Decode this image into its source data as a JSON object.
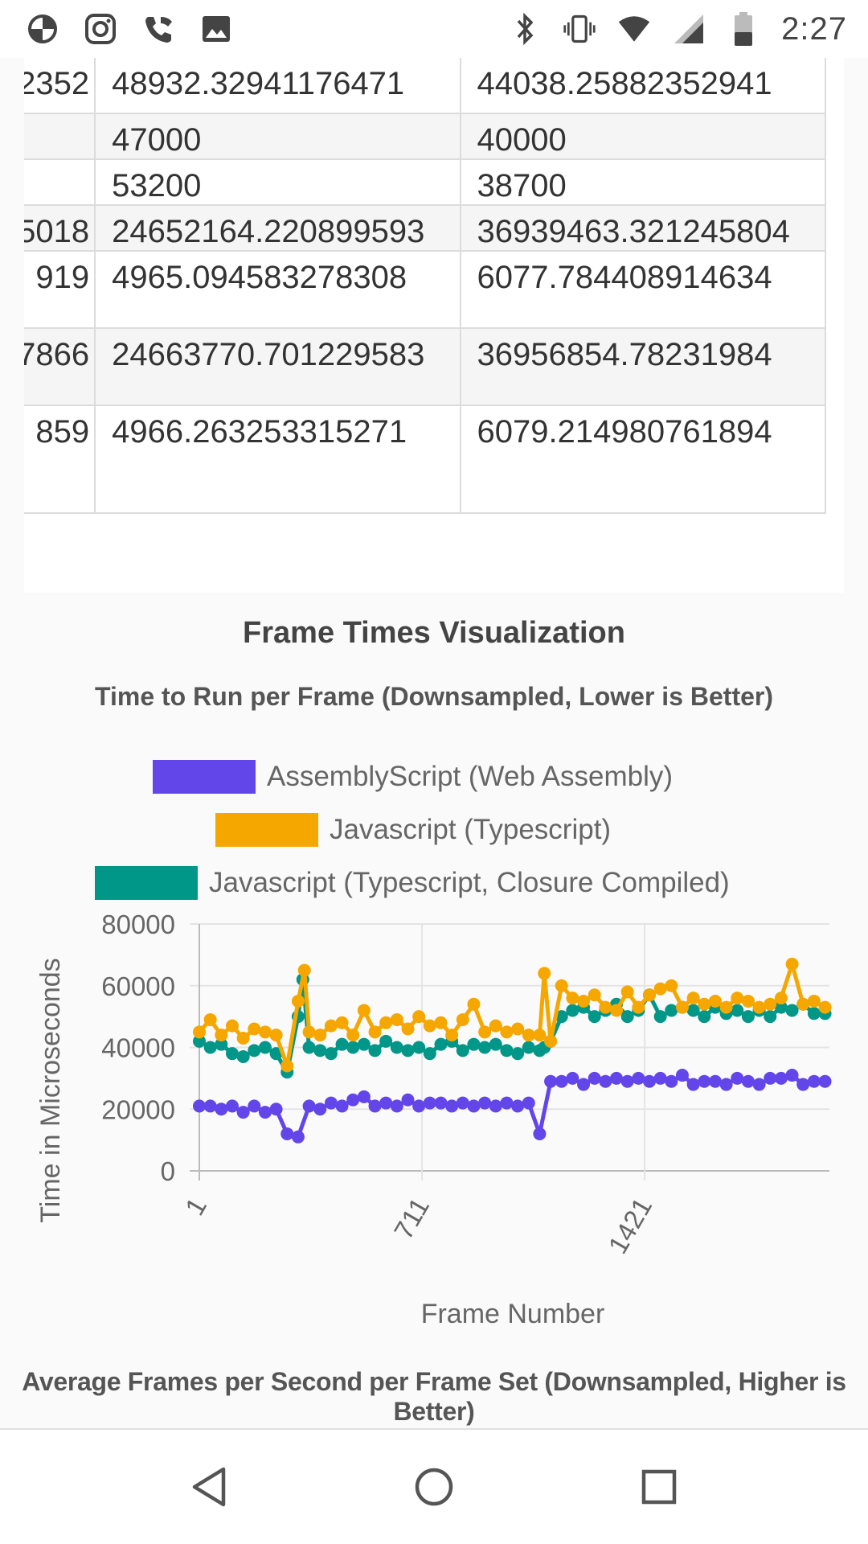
{
  "status_bar": {
    "time": "2:27",
    "left_icons": [
      "data-saver-icon",
      "instagram-icon",
      "wifi-calling-icon",
      "gallery-icon"
    ],
    "right_icons": [
      "bluetooth-icon",
      "vibrate-icon",
      "wifi-icon",
      "cell-signal-icon",
      "battery-icon"
    ]
  },
  "table": {
    "rows": [
      {
        "c0": "2352",
        "c1": "48932.32941176471",
        "c2": "44038.25882352941",
        "alt": false
      },
      {
        "c0": "",
        "c1": "47000",
        "c2": "40000",
        "alt": true
      },
      {
        "c0": "",
        "c1": "53200",
        "c2": "38700",
        "alt": false
      },
      {
        "c0": "5018",
        "c1": "24652164.220899593",
        "c2": "36939463.321245804",
        "alt": true
      },
      {
        "c0": "919",
        "c1": "4965.094583278308",
        "c2": "6077.784408914634",
        "alt": false
      },
      {
        "c0": "7866",
        "c1": "24663770.701229583",
        "c2": "36956854.78231984",
        "alt": true
      },
      {
        "c0": "859",
        "c1": "4966.263253315271",
        "c2": "6079.214980761894",
        "alt": false
      }
    ]
  },
  "visualization": {
    "heading": "Frame Times Visualization",
    "fps_chart_title": "Average Frames per Second per Frame Set (Downsampled, Higher is Better)"
  },
  "chart_data": {
    "type": "line",
    "title": "Time to Run per Frame (Downsampled, Lower is Better)",
    "xlabel": "Frame Number",
    "ylabel": "Time in Microseconds",
    "ylim": [
      0,
      80000
    ],
    "xlim": [
      1,
      2010
    ],
    "y_ticks": [
      0,
      20000,
      40000,
      60000,
      80000
    ],
    "x_ticks": [
      1,
      711,
      1421
    ],
    "grid": true,
    "legend_position": "top",
    "series": [
      {
        "name": "AssemblyScript (Web Assembly)",
        "color": "#6246ea",
        "x": [
          1,
          36,
          71,
          106,
          141,
          176,
          211,
          246,
          281,
          316,
          351,
          386,
          421,
          456,
          491,
          526,
          561,
          596,
          631,
          666,
          701,
          736,
          771,
          806,
          841,
          876,
          911,
          946,
          981,
          1016,
          1051,
          1086,
          1121,
          1156,
          1191,
          1226,
          1261,
          1296,
          1331,
          1366,
          1401,
          1436,
          1471,
          1506,
          1541,
          1576,
          1611,
          1646,
          1681,
          1716,
          1751,
          1786,
          1821,
          1856,
          1891,
          1926,
          1961,
          1996
        ],
        "values": [
          21000,
          21000,
          20000,
          21000,
          19000,
          21000,
          19000,
          20000,
          12000,
          11000,
          21000,
          20000,
          22000,
          21000,
          23000,
          24000,
          21000,
          22000,
          21000,
          23000,
          21000,
          22000,
          22000,
          21000,
          22000,
          21000,
          22000,
          21000,
          22000,
          21000,
          22000,
          12000,
          29000,
          29000,
          30000,
          28000,
          30000,
          29000,
          30000,
          29000,
          30000,
          29000,
          30000,
          29000,
          31000,
          28000,
          29000,
          29000,
          28000,
          30000,
          29000,
          28000,
          30000,
          30000,
          31000,
          28000,
          29000,
          29000
        ]
      },
      {
        "name": "Javascript (Typescript)",
        "color": "#f5a700",
        "x": [
          1,
          36,
          71,
          106,
          141,
          176,
          211,
          246,
          281,
          316,
          336,
          351,
          386,
          421,
          456,
          491,
          526,
          561,
          596,
          631,
          666,
          701,
          736,
          771,
          806,
          841,
          876,
          911,
          946,
          981,
          1016,
          1051,
          1086,
          1101,
          1121,
          1156,
          1191,
          1226,
          1261,
          1296,
          1331,
          1366,
          1401,
          1436,
          1471,
          1506,
          1541,
          1576,
          1611,
          1646,
          1681,
          1716,
          1751,
          1786,
          1821,
          1856,
          1891,
          1926,
          1961,
          1996
        ],
        "values": [
          45000,
          49000,
          44000,
          47000,
          43000,
          46000,
          45000,
          44000,
          34000,
          55000,
          65000,
          45000,
          44000,
          47000,
          48000,
          44000,
          52000,
          45000,
          48000,
          49000,
          46000,
          50000,
          47000,
          48000,
          44000,
          49000,
          54000,
          45000,
          47000,
          45000,
          46000,
          44000,
          44000,
          64000,
          42000,
          60000,
          56000,
          55000,
          57000,
          53000,
          52000,
          58000,
          53000,
          57000,
          59000,
          60000,
          53000,
          56000,
          54000,
          55000,
          53000,
          56000,
          55000,
          53000,
          54000,
          56000,
          67000,
          54000,
          55000,
          53000
        ]
      },
      {
        "name": "Javascript (Typescript, Closure Compiled)",
        "color": "#009688",
        "x": [
          1,
          36,
          71,
          106,
          141,
          176,
          211,
          246,
          281,
          316,
          331,
          351,
          386,
          421,
          456,
          491,
          526,
          561,
          596,
          631,
          666,
          701,
          736,
          771,
          806,
          841,
          876,
          911,
          946,
          981,
          1016,
          1051,
          1086,
          1101,
          1121,
          1156,
          1191,
          1226,
          1261,
          1296,
          1331,
          1366,
          1401,
          1436,
          1471,
          1506,
          1541,
          1576,
          1611,
          1646,
          1681,
          1716,
          1751,
          1786,
          1821,
          1856,
          1891,
          1926,
          1961,
          1996
        ],
        "values": [
          42000,
          40000,
          41000,
          38000,
          37000,
          39000,
          40000,
          38000,
          32000,
          50000,
          62000,
          40000,
          39000,
          38000,
          41000,
          40000,
          41000,
          39000,
          42000,
          40000,
          39000,
          40000,
          38000,
          41000,
          42000,
          39000,
          41000,
          40000,
          41000,
          39000,
          38000,
          40000,
          39000,
          40000,
          42000,
          50000,
          52000,
          53000,
          50000,
          52000,
          54000,
          50000,
          52000,
          57000,
          50000,
          52000,
          53000,
          52000,
          50000,
          53000,
          51000,
          52000,
          50000,
          52000,
          50000,
          53000,
          52000,
          54000,
          51000,
          51000
        ]
      }
    ]
  },
  "nav_bar": {
    "icons": [
      "back-icon",
      "home-icon",
      "recents-icon"
    ]
  }
}
